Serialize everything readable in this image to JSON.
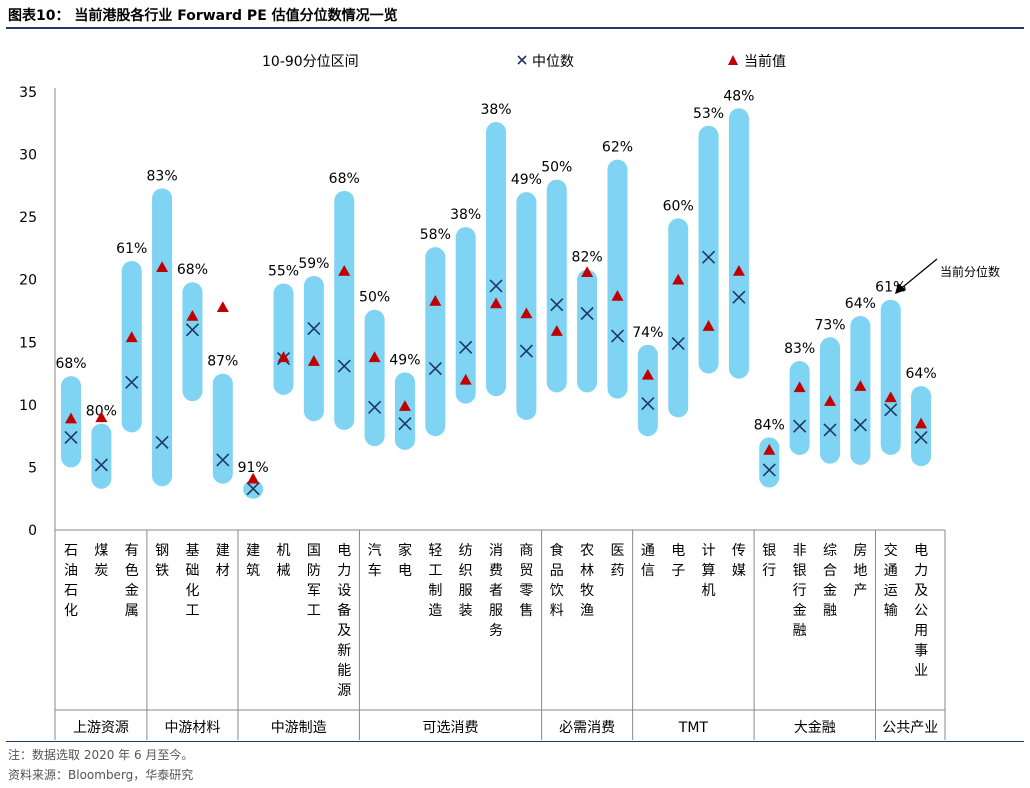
{
  "title": "图表10：  当前港股各行业 Forward PE 估值分位数情况一览",
  "note": "注：数据选取 2020 年 6 月至今。",
  "source": "资料来源：Bloomberg，华泰研究",
  "annotation": "当前分位数",
  "colors": {
    "range_bar": "#7fd3f3",
    "median_marker": "#1f3864",
    "current_marker": "#c00000",
    "axis": "#888888"
  },
  "chart_data": {
    "type": "range",
    "title": "当前港股各行业 Forward PE 估值分位数情况一览",
    "ylim": [
      0,
      35
    ],
    "yticks": [
      0,
      5,
      10,
      15,
      20,
      25,
      30,
      35
    ],
    "legend": [
      {
        "key": "range",
        "label": "10-90分位区间",
        "marker": "bar"
      },
      {
        "key": "median",
        "label": "中位数",
        "marker": "x"
      },
      {
        "key": "current",
        "label": "当前值",
        "marker": "triangle"
      }
    ],
    "legend_position": "top",
    "groups": [
      {
        "name": "上游资源",
        "count": 3
      },
      {
        "name": "中游材料",
        "count": 3
      },
      {
        "name": "中游制造",
        "count": 4
      },
      {
        "name": "可选消费",
        "count": 6
      },
      {
        "name": "必需消费",
        "count": 3
      },
      {
        "name": "TMT",
        "count": 4
      },
      {
        "name": "大金融",
        "count": 4
      },
      {
        "name": "公共产业",
        "count": 2
      }
    ],
    "categories": [
      "石油石化",
      "煤炭",
      "有色金属",
      "钢铁",
      "基础化工",
      "建材",
      "建筑",
      "机械",
      "国防军工",
      "电力设备及新能源",
      "汽车",
      "家电",
      "轻工制造",
      "纺织服装",
      "消费者服务",
      "商贸零售",
      "食品饮料",
      "农林牧渔",
      "医药",
      "通信",
      "电子",
      "计算机",
      "传媒",
      "银行",
      "非银行金融",
      "综合金融",
      "房地产",
      "交通运输",
      "电力及公用事业"
    ],
    "range_low": [
      5.0,
      3.3,
      7.8,
      3.5,
      10.3,
      3.7,
      2.5,
      10.8,
      8.7,
      8.0,
      6.7,
      6.4,
      7.5,
      10.1,
      10.7,
      8.8,
      11.0,
      11.0,
      10.5,
      7.5,
      9.0,
      12.5,
      12.1,
      3.4,
      6.0,
      5.3,
      5.2,
      6.0,
      5.1
    ],
    "range_high": [
      12.3,
      8.5,
      21.5,
      27.3,
      19.8,
      12.5,
      4.0,
      19.7,
      20.3,
      27.1,
      17.6,
      12.6,
      22.6,
      24.2,
      32.6,
      27.0,
      28.0,
      20.8,
      29.6,
      14.8,
      24.9,
      32.3,
      33.7,
      7.4,
      13.5,
      15.4,
      17.1,
      18.4,
      11.5
    ],
    "median": [
      7.4,
      5.2,
      11.8,
      7.0,
      16.0,
      5.6,
      3.3,
      13.7,
      16.1,
      13.1,
      9.8,
      8.5,
      12.9,
      14.6,
      19.5,
      14.3,
      18.0,
      17.3,
      15.5,
      10.1,
      14.9,
      21.8,
      18.6,
      4.8,
      8.3,
      8.0,
      8.4,
      9.6,
      7.4
    ],
    "current": [
      8.9,
      9.0,
      15.4,
      21.0,
      17.1,
      17.8,
      4.1,
      13.8,
      13.5,
      20.7,
      13.8,
      9.9,
      18.3,
      12.0,
      18.1,
      17.3,
      15.9,
      20.6,
      18.7,
      12.4,
      20.0,
      16.3,
      20.7,
      6.4,
      11.4,
      10.3,
      11.5,
      10.6,
      8.5
    ],
    "percentile_labels": [
      "68%",
      "80%",
      "61%",
      "83%",
      "68%",
      "87%",
      "91%",
      "55%",
      "59%",
      "68%",
      "50%",
      "49%",
      "58%",
      "38%",
      "38%",
      "49%",
      "50%",
      "82%",
      "62%",
      "74%",
      "60%",
      "53%",
      "48%",
      "84%",
      "83%",
      "73%",
      "64%",
      "61%",
      "64%"
    ]
  }
}
